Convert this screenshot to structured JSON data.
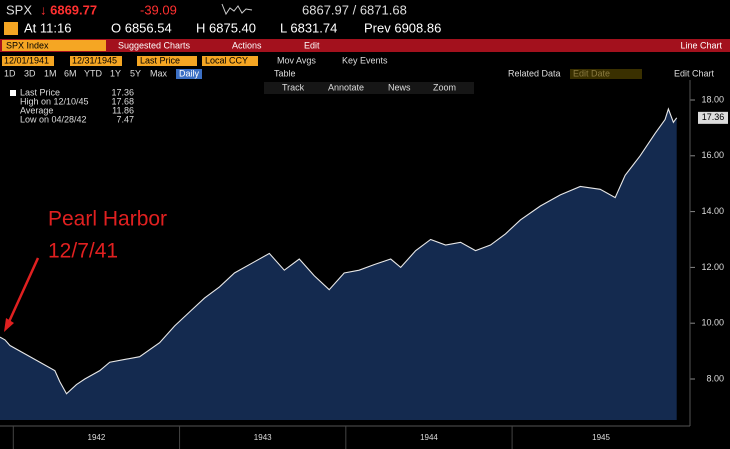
{
  "header": {
    "ticker": "SPX",
    "last": "↓ 6869.77",
    "change": "-39.09",
    "bid_ask": "6867.97 / 6871.68",
    "time": "At 11:16",
    "open": "O 6856.54",
    "high": "H 6875.40",
    "low": "L 6831.74",
    "prev": "Prev 6908.86"
  },
  "toolbar": {
    "security": "SPX Index",
    "menus": [
      "Suggested Charts",
      "Actions",
      "Edit"
    ],
    "chart_type": "Line Chart"
  },
  "controls": {
    "start_date": "12/01/1941",
    "end_date": "12/31/1945",
    "field": "Last Price",
    "currency": "Local CCY",
    "options": [
      "Mov Avgs",
      "Key Events"
    ],
    "periods": [
      "1D",
      "3D",
      "1M",
      "6M",
      "YTD",
      "1Y",
      "5Y",
      "Max"
    ],
    "frequency": "Daily",
    "table": "Table",
    "related": "Related Data",
    "date_placeholder": "Edit Date",
    "edit_chart": "Edit Chart",
    "tools": [
      "Track",
      "Annotate",
      "News",
      "Zoom"
    ]
  },
  "chart_data": {
    "type": "area",
    "x": [
      1941.92,
      1941.95,
      1941.98,
      1942.07,
      1942.16,
      1942.25,
      1942.28,
      1942.32,
      1942.38,
      1942.43,
      1942.52,
      1942.58,
      1942.67,
      1942.76,
      1942.88,
      1942.97,
      1943.06,
      1943.15,
      1943.24,
      1943.33,
      1943.45,
      1943.54,
      1943.63,
      1943.72,
      1943.81,
      1943.9,
      1943.99,
      1944.08,
      1944.17,
      1944.27,
      1944.33,
      1944.42,
      1944.51,
      1944.6,
      1944.69,
      1944.78,
      1944.87,
      1944.96,
      1945.05,
      1945.17,
      1945.29,
      1945.41,
      1945.53,
      1945.62,
      1945.68,
      1945.77,
      1945.86,
      1945.92,
      1945.94,
      1945.97,
      1945.99
    ],
    "series": [
      {
        "name": "Last Price",
        "color": "#e8e8e8",
        "fill": "#142a4f",
        "values": [
          9.5,
          9.4,
          9.2,
          8.9,
          8.6,
          8.3,
          7.9,
          7.47,
          7.8,
          8.0,
          8.3,
          8.6,
          8.7,
          8.8,
          9.3,
          9.9,
          10.4,
          10.9,
          11.3,
          11.8,
          12.2,
          12.5,
          11.9,
          12.3,
          11.7,
          11.2,
          11.8,
          11.9,
          12.1,
          12.3,
          12.0,
          12.6,
          13.0,
          12.8,
          12.9,
          12.6,
          12.8,
          13.2,
          13.7,
          14.2,
          14.6,
          14.9,
          14.8,
          14.5,
          15.3,
          16.0,
          16.8,
          17.3,
          17.68,
          17.2,
          17.36
        ]
      }
    ],
    "xlim": [
      1941.92,
      1946.07
    ],
    "ylim": [
      6.53,
      18.43
    ],
    "xticks": [
      1942,
      1943,
      1944,
      1945
    ],
    "yticks": [
      {
        "value": 8,
        "label": "8.00"
      },
      {
        "value": 10,
        "label": "10.00"
      },
      {
        "value": 12,
        "label": "12.00"
      },
      {
        "value": 14,
        "label": "14.00"
      },
      {
        "value": 16,
        "label": "16.00"
      },
      {
        "value": 18,
        "label": "18.00"
      }
    ],
    "stats": [
      {
        "label": "High on 12/10/45",
        "value": 17.68
      },
      {
        "label": "Average",
        "value": 11.86
      },
      {
        "label": "Low on 04/28/42",
        "value": 7.47
      }
    ],
    "annotation": [
      "Pearl Harbor",
      "12/7/41"
    ]
  }
}
